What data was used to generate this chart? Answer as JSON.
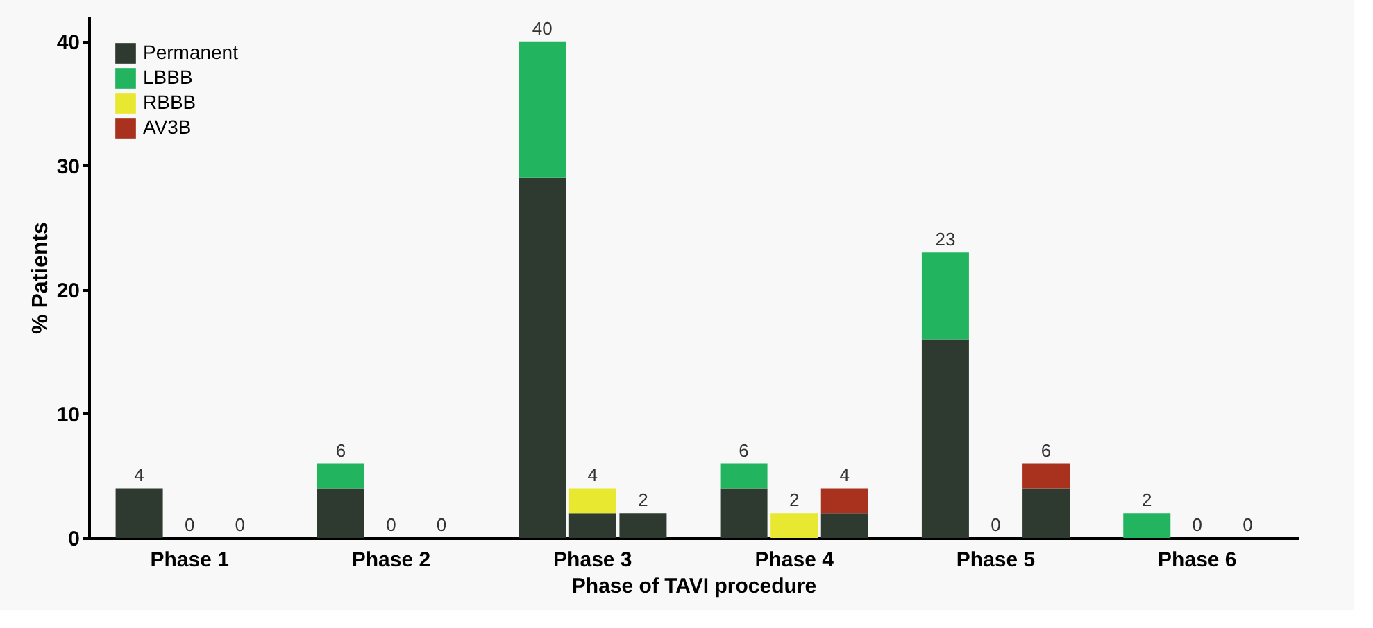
{
  "chart_data": {
    "type": "bar",
    "stacked": true,
    "categories": [
      null,
      "Phase 1",
      null,
      null,
      "Phase 2",
      null,
      null,
      "Phase 3",
      null,
      null,
      "Phase 4",
      null,
      null,
      "Phase 5",
      null,
      null,
      "Phase 6",
      null
    ],
    "series": [
      {
        "name": "Permanent",
        "color": "#2e3a30",
        "values": [
          4,
          0,
          0,
          4,
          0,
          0,
          29,
          2,
          2,
          4,
          0,
          2,
          16,
          0,
          4,
          0,
          0,
          0
        ]
      },
      {
        "name": "LBBB",
        "color": "#22b45e",
        "values": [
          0,
          null,
          null,
          2,
          null,
          null,
          11,
          null,
          null,
          2,
          null,
          null,
          7,
          null,
          null,
          2,
          null,
          null
        ]
      },
      {
        "name": "RBBB",
        "color": "#e8e830",
        "values": [
          null,
          0,
          null,
          null,
          0,
          null,
          null,
          2,
          null,
          null,
          2,
          null,
          null,
          0,
          null,
          null,
          0,
          null
        ]
      },
      {
        "name": "AV3B",
        "color": "#a8321e",
        "values": [
          null,
          null,
          0,
          null,
          null,
          0,
          null,
          null,
          0,
          null,
          null,
          2,
          null,
          null,
          2,
          null,
          null,
          0
        ]
      }
    ],
    "totals": [
      "4",
      "0",
      "0",
      "6",
      "0",
      "0",
      "40",
      "4",
      "2",
      "6",
      "2",
      "4",
      "23",
      "0",
      "6",
      "2",
      "0",
      "0"
    ],
    "xlabel": "Phase of TAVI procedure",
    "ylabel": "% Patients",
    "ylim": [
      0,
      42
    ],
    "yticks": [
      0,
      10,
      20,
      30,
      40
    ],
    "grid": false,
    "legend": "top left"
  }
}
